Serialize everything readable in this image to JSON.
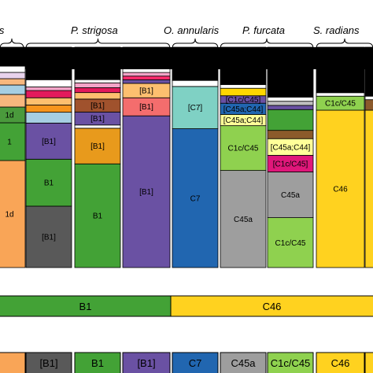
{
  "chart_data": {
    "type": "stacked-bar",
    "title": "",
    "xlabel": "",
    "ylabel": "",
    "ylim": [
      0,
      1
    ],
    "grid": false,
    "legend": "none",
    "species": [
      {
        "label": "is",
        "color_key": ""
      },
      {
        "label": "P. strigosa"
      },
      {
        "label": "O. annularis"
      },
      {
        "label": "P. furcata"
      },
      {
        "label": "S. radians"
      }
    ],
    "columns": [
      {
        "name": "col-1",
        "segments": [
          {
            "value": 0.06,
            "color": "#000000",
            "label": ""
          },
          {
            "value": 0.02,
            "color": "#ffffff",
            "label": ""
          },
          {
            "value": 0.02,
            "color": "#e8d3ec",
            "label": ""
          },
          {
            "value": 0.02,
            "color": "#f7b77e",
            "label": ""
          },
          {
            "value": 0.03,
            "color": "#a6cee3",
            "label": ""
          },
          {
            "value": 0.04,
            "color": "#f7b77e",
            "label": ""
          },
          {
            "value": 0.05,
            "color": "#4a9a3c",
            "label": "1d"
          },
          {
            "value": 0.12,
            "color": "#43a236",
            "label": "1"
          },
          {
            "value": 0.34,
            "color": "#f9a557",
            "label": "1d"
          }
        ]
      },
      {
        "name": "col-2",
        "segments": [
          {
            "value": 0.09,
            "color": "#000000",
            "label": ""
          },
          {
            "value": 0.02,
            "color": "#ffffff",
            "label": ""
          },
          {
            "value": 0.01,
            "color": "#f4a4c8",
            "label": ""
          },
          {
            "value": 0.02,
            "color": "#e31a5c",
            "label": ""
          },
          {
            "value": 0.02,
            "color": "#fdbf6f",
            "label": ""
          },
          {
            "value": 0.02,
            "color": "#f7941d",
            "label": ""
          },
          {
            "value": 0.03,
            "color": "#a6cee3",
            "label": ""
          },
          {
            "value": 0.1,
            "color": "#6a51a3",
            "label": "[B1]"
          },
          {
            "value": 0.13,
            "color": "#43a236",
            "label": "B1"
          },
          {
            "value": 0.17,
            "color": "#595959",
            "label": "[B1]"
          }
        ]
      },
      {
        "name": "col-3",
        "segments": [
          {
            "value": 0.1,
            "color": "#000000",
            "label": ""
          },
          {
            "value": 0.01,
            "color": "#ffffff",
            "label": ""
          },
          {
            "value": 0.015,
            "color": "#f4a4c8",
            "label": ""
          },
          {
            "value": 0.015,
            "color": "#e31a5c",
            "label": ""
          },
          {
            "value": 0.02,
            "color": "#fdbf6f",
            "label": ""
          },
          {
            "value": 0.04,
            "color": "#a0522d",
            "label": "[B1]"
          },
          {
            "value": 0.04,
            "color": "#6a51a3",
            "label": "[B1]"
          },
          {
            "value": 0.01,
            "color": "#ffffff",
            "label": ""
          },
          {
            "value": 0.11,
            "color": "#e89a1c",
            "label": "[B1]"
          },
          {
            "value": 0.32,
            "color": "#43a236",
            "label": "B1"
          }
        ]
      },
      {
        "name": "col-4",
        "segments": [
          {
            "value": 0.06,
            "color": "#000000",
            "label": ""
          },
          {
            "value": 0.01,
            "color": "#ffffff",
            "label": ""
          },
          {
            "value": 0.01,
            "color": "#f4a4c8",
            "label": ""
          },
          {
            "value": 0.01,
            "color": "#ff2a6d",
            "label": ""
          },
          {
            "value": 0.01,
            "color": "#6a51a3",
            "label": ""
          },
          {
            "value": 0.04,
            "color": "#fdbf6f",
            "label": "[B1]"
          },
          {
            "value": 0.05,
            "color": "#f46d6d",
            "label": "[B1]"
          },
          {
            "value": 0.42,
            "color": "#6a51a3",
            "label": "[B1]"
          }
        ]
      },
      {
        "name": "col-5",
        "segments": [
          {
            "value": 0.11,
            "color": "#000000",
            "label": ""
          },
          {
            "value": 0.02,
            "color": "#ffffff",
            "label": ""
          },
          {
            "value": 0.14,
            "color": "#7fd1c4",
            "label": "[C7]"
          },
          {
            "value": 0.46,
            "color": "#2166b0",
            "label": "C7"
          }
        ]
      },
      {
        "name": "col-6",
        "segments": [
          {
            "value": 0.1,
            "color": "#000000",
            "label": ""
          },
          {
            "value": 0.01,
            "color": "#ffffff",
            "label": ""
          },
          {
            "value": 0.02,
            "color": "#ffd700",
            "label": ""
          },
          {
            "value": 0.02,
            "color": "#6a51a3",
            "label": "[C1c/C45]"
          },
          {
            "value": 0.03,
            "color": "#2166b0",
            "label": "[C45a;C44]"
          },
          {
            "value": 0.03,
            "color": "#ffff99",
            "label": "[C45a;C44]"
          },
          {
            "value": 0.12,
            "color": "#8fd14f",
            "label": "C1c/C45"
          },
          {
            "value": 0.26,
            "color": "#9e9e9e",
            "label": "C45a"
          }
        ]
      },
      {
        "name": "col-7",
        "segments": [
          {
            "value": 0.12,
            "color": "#000000",
            "label": ""
          },
          {
            "value": 0.01,
            "color": "#ffffff",
            "label": ""
          },
          {
            "value": 0.01,
            "color": "#bfbfbf",
            "label": ""
          },
          {
            "value": 0.01,
            "color": "#6a51a3",
            "label": ""
          },
          {
            "value": 0.05,
            "color": "#43a236",
            "label": ""
          },
          {
            "value": 0.02,
            "color": "#8b5a2b",
            "label": ""
          },
          {
            "value": 0.04,
            "color": "#ffff99",
            "label": "[C45a;C44]"
          },
          {
            "value": 0.04,
            "color": "#e0177a",
            "label": "[C1c/C45]"
          },
          {
            "value": 0.11,
            "color": "#9e9e9e",
            "label": "C45a"
          },
          {
            "value": 0.12,
            "color": "#8fd14f",
            "label": "C1c/C45"
          }
        ]
      },
      {
        "name": "col-8",
        "segments": [
          {
            "value": 0.13,
            "color": "#000000",
            "label": ""
          },
          {
            "value": 0.01,
            "color": "#ffffff",
            "label": ""
          },
          {
            "value": 0.04,
            "color": "#8fd14f",
            "label": "C1c/C45"
          },
          {
            "value": 0.45,
            "color": "#ffd21f",
            "label": "C46"
          }
        ]
      },
      {
        "name": "col-9",
        "segments": [
          {
            "value": 0.14,
            "color": "#000000",
            "label": ""
          },
          {
            "value": 0.01,
            "color": "#ffffff",
            "label": ""
          },
          {
            "value": 0.03,
            "color": "#8b5a2b",
            "label": ""
          },
          {
            "value": 0.45,
            "color": "#ffd21f",
            "label": ""
          }
        ]
      }
    ],
    "dominant_band": [
      {
        "label": "B1",
        "color": "#43a236"
      },
      {
        "label": "C46",
        "color": "#ffd21f"
      }
    ],
    "bottom_row": [
      {
        "label": "",
        "color": "#f9a557"
      },
      {
        "label": "[B1]",
        "color": "#595959"
      },
      {
        "label": "B1",
        "color": "#43a236"
      },
      {
        "label": "[B1]",
        "color": "#6a51a3"
      },
      {
        "label": "C7",
        "color": "#2166b0"
      },
      {
        "label": "C45a",
        "color": "#9e9e9e"
      },
      {
        "label": "C1c/C45",
        "color": "#8fd14f"
      },
      {
        "label": "C46",
        "color": "#ffd21f"
      },
      {
        "label": "",
        "color": "#ffd21f"
      }
    ]
  }
}
